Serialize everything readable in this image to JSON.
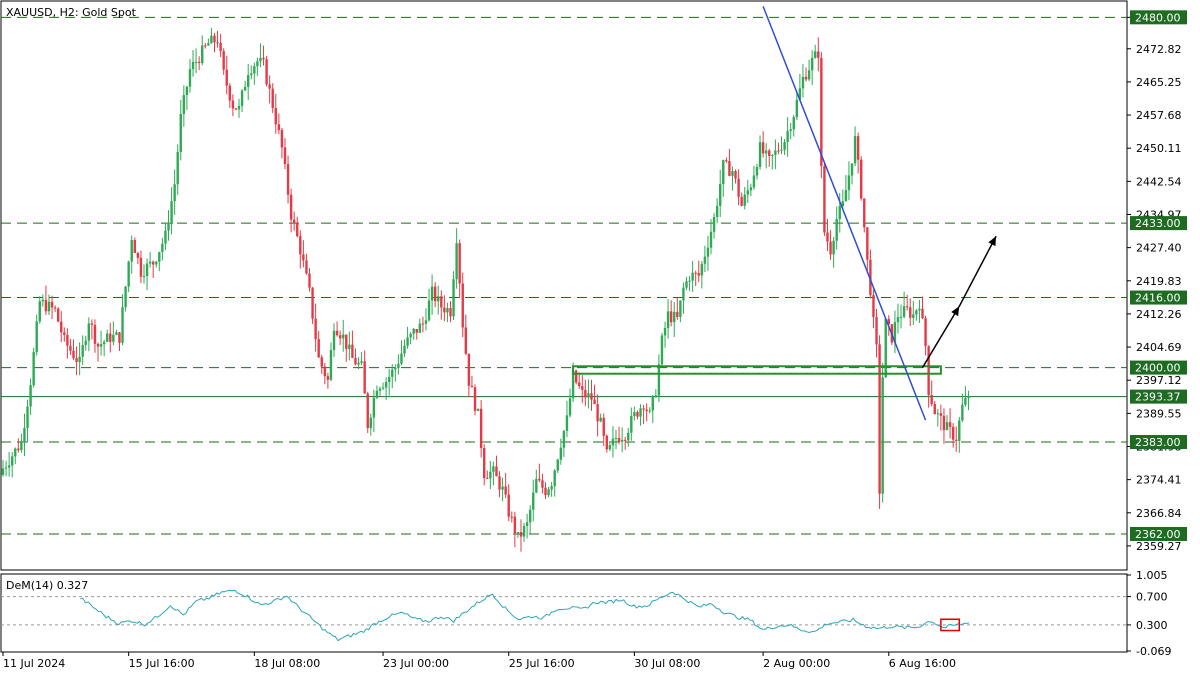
{
  "chart_data": [
    {
      "type": "candlestick",
      "title": "XAUUSD, H2:  Gold Spot",
      "symbol": "XAUUSD",
      "timeframe": "H2",
      "instrument": "Gold Spot",
      "ylim": [
        2354.0,
        2483.5
      ],
      "y_ticks": [
        "2480.00",
        "2472.82",
        "2465.25",
        "2457.68",
        "2450.11",
        "2442.54",
        "2434.97",
        "2427.40",
        "2419.83",
        "2412.26",
        "2404.69",
        "2397.12",
        "2389.55",
        "2381.98",
        "2374.41",
        "2366.84",
        "2359.27"
      ],
      "x_ticks": [
        {
          "label": "11 Jul 2024",
          "index": 0
        },
        {
          "label": "15 Jul 16:00",
          "index": 41
        },
        {
          "label": "18 Jul 08:00",
          "index": 82
        },
        {
          "label": "23 Jul 00:00",
          "index": 124
        },
        {
          "label": "25 Jul 16:00",
          "index": 165
        },
        {
          "label": "30 Jul 08:00",
          "index": 206
        },
        {
          "label": "2 Aug 00:00",
          "index": 248
        },
        {
          "label": "6 Aug 16:00",
          "index": 289
        }
      ],
      "levels": [
        {
          "label": "2480.00",
          "value": 2480.0,
          "style": "dashed"
        },
        {
          "label": "2433.00",
          "value": 2433.0,
          "style": "dashed"
        },
        {
          "label": "2416.00",
          "value": 2416.0,
          "style": "dashed"
        },
        {
          "label": "2400.00",
          "value": 2400.0,
          "style": "dashed"
        },
        {
          "label": "2383.00",
          "value": 2383.0,
          "style": "dashed"
        },
        {
          "label": "2362.00",
          "value": 2362.0,
          "style": "dashed"
        }
      ],
      "current_price": {
        "label": "2393.37",
        "value": 2393.37
      },
      "trendline": {
        "start": {
          "index": 248,
          "value": 2482.5
        },
        "end": {
          "index": 301,
          "value": 2388.0
        }
      },
      "zone": {
        "start_index": 186,
        "end_index": 306,
        "top": 2400.3,
        "bottom": 2398.6
      },
      "arrow_path": [
        {
          "index": 300,
          "value": 2400.0
        },
        {
          "index": 312,
          "value": 2414.0
        },
        {
          "index": 324,
          "value": 2430.0
        }
      ],
      "anchors": [
        {
          "i": 0,
          "v": 2377
        },
        {
          "i": 3,
          "v": 2380
        },
        {
          "i": 6,
          "v": 2383
        },
        {
          "i": 9,
          "v": 2397
        },
        {
          "i": 12,
          "v": 2415
        },
        {
          "i": 17,
          "v": 2413
        },
        {
          "i": 20,
          "v": 2406
        },
        {
          "i": 25,
          "v": 2401
        },
        {
          "i": 28,
          "v": 2411
        },
        {
          "i": 31,
          "v": 2405
        },
        {
          "i": 35,
          "v": 2407
        },
        {
          "i": 38,
          "v": 2407
        },
        {
          "i": 42,
          "v": 2430
        },
        {
          "i": 45,
          "v": 2422
        },
        {
          "i": 49,
          "v": 2424
        },
        {
          "i": 53,
          "v": 2430
        },
        {
          "i": 56,
          "v": 2442
        },
        {
          "i": 58,
          "v": 2457
        },
        {
          "i": 61,
          "v": 2468
        },
        {
          "i": 64,
          "v": 2471
        },
        {
          "i": 67,
          "v": 2474
        },
        {
          "i": 70,
          "v": 2475
        },
        {
          "i": 72,
          "v": 2467
        },
        {
          "i": 75,
          "v": 2460
        },
        {
          "i": 77,
          "v": 2459
        },
        {
          "i": 80,
          "v": 2468
        },
        {
          "i": 83,
          "v": 2470
        },
        {
          "i": 85,
          "v": 2469
        },
        {
          "i": 88,
          "v": 2460
        },
        {
          "i": 91,
          "v": 2450
        },
        {
          "i": 94,
          "v": 2435
        },
        {
          "i": 97,
          "v": 2427
        },
        {
          "i": 100,
          "v": 2417
        },
        {
          "i": 103,
          "v": 2402
        },
        {
          "i": 106,
          "v": 2397
        },
        {
          "i": 108,
          "v": 2410
        },
        {
          "i": 111,
          "v": 2407
        },
        {
          "i": 114,
          "v": 2402
        },
        {
          "i": 117,
          "v": 2400
        },
        {
          "i": 119,
          "v": 2387
        },
        {
          "i": 122,
          "v": 2396
        },
        {
          "i": 125,
          "v": 2397
        },
        {
          "i": 128,
          "v": 2400
        },
        {
          "i": 131,
          "v": 2405
        },
        {
          "i": 134,
          "v": 2408
        },
        {
          "i": 137,
          "v": 2410
        },
        {
          "i": 140,
          "v": 2417
        },
        {
          "i": 143,
          "v": 2414
        },
        {
          "i": 146,
          "v": 2413
        },
        {
          "i": 148,
          "v": 2430
        },
        {
          "i": 150,
          "v": 2410
        },
        {
          "i": 152,
          "v": 2397
        },
        {
          "i": 155,
          "v": 2389
        },
        {
          "i": 157,
          "v": 2376
        },
        {
          "i": 160,
          "v": 2376
        },
        {
          "i": 163,
          "v": 2372
        },
        {
          "i": 165,
          "v": 2367
        },
        {
          "i": 168,
          "v": 2361
        },
        {
          "i": 171,
          "v": 2364
        },
        {
          "i": 174,
          "v": 2374
        },
        {
          "i": 177,
          "v": 2372
        },
        {
          "i": 179,
          "v": 2374
        },
        {
          "i": 182,
          "v": 2383
        },
        {
          "i": 184,
          "v": 2388
        },
        {
          "i": 186,
          "v": 2398
        },
        {
          "i": 189,
          "v": 2394
        },
        {
          "i": 192,
          "v": 2393
        },
        {
          "i": 195,
          "v": 2387
        },
        {
          "i": 197,
          "v": 2380
        },
        {
          "i": 200,
          "v": 2384
        },
        {
          "i": 203,
          "v": 2385
        },
        {
          "i": 206,
          "v": 2389
        },
        {
          "i": 209,
          "v": 2392
        },
        {
          "i": 211,
          "v": 2389
        },
        {
          "i": 213,
          "v": 2395
        },
        {
          "i": 215,
          "v": 2406
        },
        {
          "i": 217,
          "v": 2412
        },
        {
          "i": 220,
          "v": 2411
        },
        {
          "i": 222,
          "v": 2418
        },
        {
          "i": 224,
          "v": 2421
        },
        {
          "i": 227,
          "v": 2421
        },
        {
          "i": 229,
          "v": 2426
        },
        {
          "i": 232,
          "v": 2434
        },
        {
          "i": 235,
          "v": 2446
        },
        {
          "i": 238,
          "v": 2445
        },
        {
          "i": 241,
          "v": 2437
        },
        {
          "i": 244,
          "v": 2442
        },
        {
          "i": 247,
          "v": 2450
        },
        {
          "i": 250,
          "v": 2447
        },
        {
          "i": 253,
          "v": 2450
        },
        {
          "i": 255,
          "v": 2452
        },
        {
          "i": 258,
          "v": 2458
        },
        {
          "i": 261,
          "v": 2466
        },
        {
          "i": 264,
          "v": 2470
        },
        {
          "i": 266,
          "v": 2472
        },
        {
          "i": 267,
          "v": 2445
        },
        {
          "i": 268,
          "v": 2431
        },
        {
          "i": 270,
          "v": 2427
        },
        {
          "i": 272,
          "v": 2434
        },
        {
          "i": 274,
          "v": 2437
        },
        {
          "i": 276,
          "v": 2444
        },
        {
          "i": 278,
          "v": 2452
        },
        {
          "i": 280,
          "v": 2440
        },
        {
          "i": 282,
          "v": 2424
        },
        {
          "i": 283,
          "v": 2418
        },
        {
          "i": 284,
          "v": 2410
        },
        {
          "i": 285,
          "v": 2404
        },
        {
          "i": 286,
          "v": 2372
        },
        {
          "i": 287,
          "v": 2398
        },
        {
          "i": 288,
          "v": 2410
        },
        {
          "i": 290,
          "v": 2407
        },
        {
          "i": 292,
          "v": 2412
        },
        {
          "i": 295,
          "v": 2413
        },
        {
          "i": 297,
          "v": 2412
        },
        {
          "i": 299,
          "v": 2415
        },
        {
          "i": 301,
          "v": 2405
        },
        {
          "i": 302,
          "v": 2395
        },
        {
          "i": 304,
          "v": 2390
        },
        {
          "i": 306,
          "v": 2388
        },
        {
          "i": 308,
          "v": 2386
        },
        {
          "i": 311,
          "v": 2384
        },
        {
          "i": 313,
          "v": 2391
        },
        {
          "i": 315,
          "v": 2393.37
        }
      ]
    },
    {
      "type": "line",
      "title": "DeM(14) 0.327",
      "indicator": "DeM",
      "period": "14",
      "value": "0.327",
      "ylim": [
        -0.069,
        1.005
      ],
      "y_ticks": [
        "1.005",
        "0.700",
        "0.300",
        "-0.069"
      ],
      "levels": [
        {
          "label": "0.700",
          "value": 0.7
        },
        {
          "label": "0.300",
          "value": 0.3
        }
      ],
      "marker": {
        "start_index": 306,
        "end_index": 312
      },
      "anchors": [
        {
          "i": 30,
          "v": 0.68
        },
        {
          "i": 35,
          "v": 0.55
        },
        {
          "i": 40,
          "v": 0.42
        },
        {
          "i": 45,
          "v": 0.32
        },
        {
          "i": 50,
          "v": 0.36
        },
        {
          "i": 55,
          "v": 0.31
        },
        {
          "i": 60,
          "v": 0.42
        },
        {
          "i": 65,
          "v": 0.58
        },
        {
          "i": 70,
          "v": 0.44
        },
        {
          "i": 75,
          "v": 0.63
        },
        {
          "i": 80,
          "v": 0.68
        },
        {
          "i": 85,
          "v": 0.76
        },
        {
          "i": 90,
          "v": 0.79
        },
        {
          "i": 95,
          "v": 0.7
        },
        {
          "i": 100,
          "v": 0.58
        },
        {
          "i": 105,
          "v": 0.63
        },
        {
          "i": 110,
          "v": 0.71
        },
        {
          "i": 115,
          "v": 0.54
        },
        {
          "i": 120,
          "v": 0.38
        },
        {
          "i": 125,
          "v": 0.22
        },
        {
          "i": 130,
          "v": 0.09
        },
        {
          "i": 135,
          "v": 0.15
        },
        {
          "i": 140,
          "v": 0.21
        },
        {
          "i": 145,
          "v": 0.33
        },
        {
          "i": 150,
          "v": 0.42
        },
        {
          "i": 155,
          "v": 0.47
        },
        {
          "i": 160,
          "v": 0.38
        },
        {
          "i": 165,
          "v": 0.35
        },
        {
          "i": 170,
          "v": 0.42
        },
        {
          "i": 175,
          "v": 0.36
        },
        {
          "i": 180,
          "v": 0.5
        },
        {
          "i": 185,
          "v": 0.63
        },
        {
          "i": 190,
          "v": 0.74
        },
        {
          "i": 195,
          "v": 0.53
        },
        {
          "i": 200,
          "v": 0.38
        },
        {
          "i": 205,
          "v": 0.42
        },
        {
          "i": 210,
          "v": 0.4
        },
        {
          "i": 215,
          "v": 0.53
        },
        {
          "i": 220,
          "v": 0.54
        },
        {
          "i": 225,
          "v": 0.52
        },
        {
          "i": 230,
          "v": 0.62
        },
        {
          "i": 235,
          "v": 0.62
        },
        {
          "i": 240,
          "v": 0.66
        },
        {
          "i": 245,
          "v": 0.56
        },
        {
          "i": 250,
          "v": 0.57
        },
        {
          "i": 255,
          "v": 0.68
        },
        {
          "i": 260,
          "v": 0.77
        },
        {
          "i": 265,
          "v": 0.66
        },
        {
          "i": 270,
          "v": 0.55
        },
        {
          "i": 275,
          "v": 0.6
        },
        {
          "i": 280,
          "v": 0.48
        },
        {
          "i": 285,
          "v": 0.41
        },
        {
          "i": 290,
          "v": 0.37
        },
        {
          "i": 295,
          "v": 0.23
        },
        {
          "i": 300,
          "v": 0.28
        },
        {
          "i": 305,
          "v": 0.3
        },
        {
          "i": 310,
          "v": 0.23
        },
        {
          "i": 315,
          "v": 0.2
        },
        {
          "i": 320,
          "v": 0.32
        },
        {
          "i": 325,
          "v": 0.34
        },
        {
          "i": 330,
          "v": 0.37
        },
        {
          "i": 335,
          "v": 0.28
        },
        {
          "i": 340,
          "v": 0.25
        },
        {
          "i": 345,
          "v": 0.28
        },
        {
          "i": 350,
          "v": 0.26
        },
        {
          "i": 355,
          "v": 0.27
        },
        {
          "i": 360,
          "v": 0.36
        },
        {
          "i": 365,
          "v": 0.26
        },
        {
          "i": 370,
          "v": 0.3
        },
        {
          "i": 375,
          "v": 0.327
        }
      ]
    }
  ],
  "colors": {
    "up": "#2eaa55",
    "down": "#e63946",
    "grid": "#1e6b22",
    "price_line": "#1e6b22",
    "trendline": "#2f4fd0",
    "zone": "#2a8f2a",
    "arrow": "#000000",
    "indicator": "#2aa7b8",
    "marker": "#e00000",
    "level_label_bg": "#1e6b22",
    "level_label_text": "#ffffff"
  }
}
